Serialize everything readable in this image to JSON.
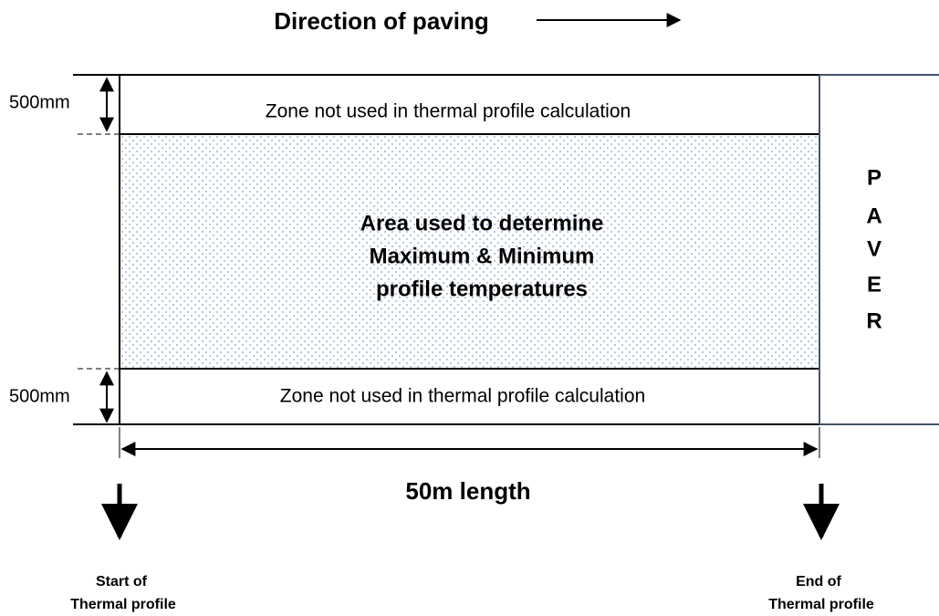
{
  "title": "Direction of paving",
  "top_zone": {
    "dimension": "500mm",
    "label": "Zone not used in thermal profile calculation"
  },
  "bottom_zone": {
    "dimension": "500mm",
    "label": "Zone not used in thermal profile calculation"
  },
  "center_area": {
    "lines": [
      "Area used to determine",
      "Maximum & Minimum",
      "profile temperatures"
    ]
  },
  "paver": [
    "P",
    "A",
    "V",
    "E",
    "R"
  ],
  "length": "50m length",
  "start": [
    "Start of",
    "Thermal profile"
  ],
  "end": [
    "End of",
    "Thermal profile"
  ]
}
